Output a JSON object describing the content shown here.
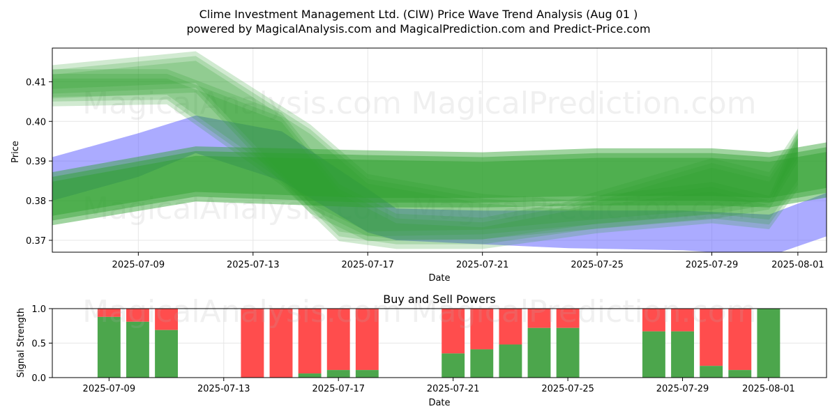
{
  "title_line1": "Clime Investment Management Ltd. (CIW) Price Wave Trend Analysis (Aug 01 )",
  "title_line2": "powered by MagicalAnalysis.com and MagicalPrediction.com and Predict-Price.com",
  "watermarks": [
    "MagicalAnalysis.com",
    "MagicalPrediction.com"
  ],
  "colors": {
    "green": "#2ca02c",
    "blue": "#6666ff",
    "buy": "#4ca64c",
    "sell": "#ff4d4d"
  },
  "chart_data": [
    {
      "type": "area",
      "title": "",
      "xlabel": "Date",
      "ylabel": "Price",
      "ylim": [
        0.367,
        0.4185
      ],
      "xlim": [
        "2025-07-06",
        "2025-08-02"
      ],
      "grid": true,
      "x_ticks": [
        "2025-07-09",
        "2025-07-13",
        "2025-07-17",
        "2025-07-21",
        "2025-07-25",
        "2025-07-29",
        "2025-08-01"
      ],
      "y_ticks": [
        0.37,
        0.38,
        0.39,
        0.4,
        0.41
      ],
      "series": [
        {
          "color": "blue",
          "dates": [
            "2025-07-06",
            "2025-07-09",
            "2025-07-11",
            "2025-07-14",
            "2025-07-17",
            "2025-07-18",
            "2025-07-21",
            "2025-07-24",
            "2025-07-28",
            "2025-07-31",
            "2025-08-02"
          ],
          "upper": [
            0.391,
            0.397,
            0.4015,
            0.3975,
            0.383,
            0.378,
            0.3775,
            0.3775,
            0.3775,
            0.3765,
            0.382
          ],
          "lower": [
            0.38,
            0.386,
            0.392,
            0.385,
            0.372,
            0.37,
            0.369,
            0.368,
            0.3675,
            0.366,
            0.371
          ]
        },
        {
          "color": "green",
          "dates": [
            "2025-07-06",
            "2025-07-11",
            "2025-07-17",
            "2025-07-21",
            "2025-07-25",
            "2025-07-29",
            "2025-07-31",
            "2025-08-02"
          ],
          "upper": [
            0.386,
            0.3925,
            0.3915,
            0.391,
            0.392,
            0.392,
            0.391,
            0.3935
          ],
          "lower": [
            0.375,
            0.381,
            0.3795,
            0.3795,
            0.38,
            0.38,
            0.3795,
            0.382
          ]
        },
        {
          "color": "green",
          "dates": [
            "2025-07-06",
            "2025-07-11",
            "2025-07-15",
            "2025-07-17",
            "2025-07-21",
            "2025-07-24",
            "2025-07-29",
            "2025-07-31",
            "2025-08-01"
          ],
          "upper": [
            0.413,
            0.4165,
            0.398,
            0.3855,
            0.3805,
            0.379,
            0.3895,
            0.386,
            0.397
          ],
          "lower": [
            0.407,
            0.4085,
            0.378,
            0.371,
            0.3715,
            0.3735,
            0.3765,
            0.379,
            0.391
          ]
        },
        {
          "color": "green",
          "dates": [
            "2025-07-06",
            "2025-07-10",
            "2025-07-14",
            "2025-07-16",
            "2025-07-18",
            "2025-07-21",
            "2025-07-25",
            "2025-07-29",
            "2025-07-31",
            "2025-08-01"
          ],
          "upper": [
            0.412,
            0.412,
            0.401,
            0.383,
            0.3755,
            0.3745,
            0.38,
            0.3835,
            0.38,
            0.397
          ],
          "lower": [
            0.405,
            0.4055,
            0.385,
            0.371,
            0.369,
            0.369,
            0.373,
            0.3755,
            0.374,
            0.384
          ]
        }
      ]
    },
    {
      "type": "bar",
      "title": "Buy and Sell Powers",
      "xlabel": "Date",
      "ylabel": "Signal Strength",
      "ylim": [
        0,
        1.0
      ],
      "y_ticks": [
        "0.0",
        "0.5",
        "1.0"
      ],
      "x_ticks": [
        "2025-07-09",
        "2025-07-13",
        "2025-07-17",
        "2025-07-21",
        "2025-07-25",
        "2025-07-29",
        "2025-08-01"
      ],
      "grid": true,
      "series": [
        {
          "name": "Buy",
          "color": "buy"
        },
        {
          "name": "Sell",
          "color": "sell"
        }
      ],
      "bars": [
        {
          "date": "2025-07-09",
          "buy": 0.88
        },
        {
          "date": "2025-07-10",
          "buy": 0.81
        },
        {
          "date": "2025-07-11",
          "buy": 0.69
        },
        {
          "date": "2025-07-14",
          "buy": 0.0
        },
        {
          "date": "2025-07-15",
          "buy": 0.0
        },
        {
          "date": "2025-07-16",
          "buy": 0.06
        },
        {
          "date": "2025-07-17",
          "buy": 0.11
        },
        {
          "date": "2025-07-18",
          "buy": 0.11
        },
        {
          "date": "2025-07-21",
          "buy": 0.35
        },
        {
          "date": "2025-07-22",
          "buy": 0.41
        },
        {
          "date": "2025-07-23",
          "buy": 0.48
        },
        {
          "date": "2025-07-24",
          "buy": 0.72
        },
        {
          "date": "2025-07-25",
          "buy": 0.72
        },
        {
          "date": "2025-07-28",
          "buy": 0.67
        },
        {
          "date": "2025-07-29",
          "buy": 0.67
        },
        {
          "date": "2025-07-30",
          "buy": 0.17
        },
        {
          "date": "2025-07-31",
          "buy": 0.11
        },
        {
          "date": "2025-08-01",
          "buy": 1.0
        }
      ]
    }
  ]
}
